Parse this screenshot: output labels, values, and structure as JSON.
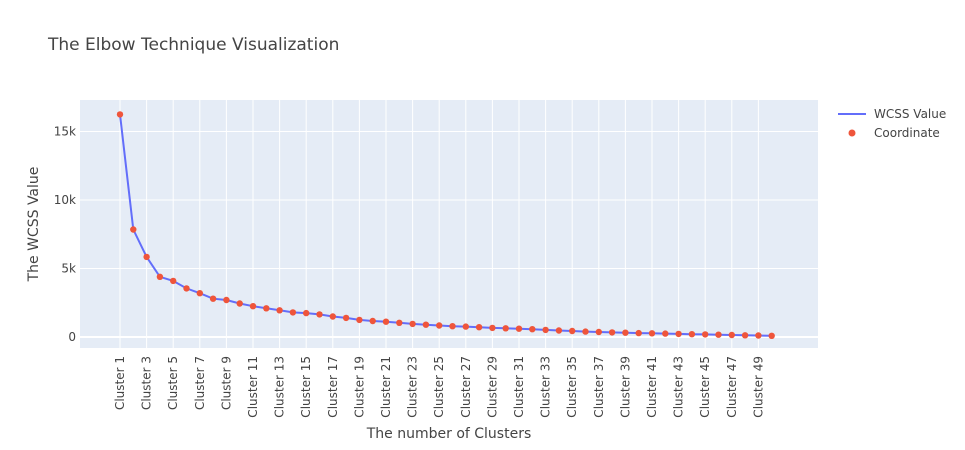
{
  "chart_data": {
    "type": "line",
    "title": "The Elbow Technique Visualization",
    "xlabel": "The number of Clusters",
    "ylabel": "The WCSS Value",
    "categories": [
      "Cluster 1",
      "Cluster 2",
      "Cluster 3",
      "Cluster 4",
      "Cluster 5",
      "Cluster 6",
      "Cluster 7",
      "Cluster 8",
      "Cluster 9",
      "Cluster 10",
      "Cluster 11",
      "Cluster 12",
      "Cluster 13",
      "Cluster 14",
      "Cluster 15",
      "Cluster 16",
      "Cluster 17",
      "Cluster 18",
      "Cluster 19",
      "Cluster 20",
      "Cluster 21",
      "Cluster 22",
      "Cluster 23",
      "Cluster 24",
      "Cluster 25",
      "Cluster 26",
      "Cluster 27",
      "Cluster 28",
      "Cluster 29",
      "Cluster 30",
      "Cluster 31",
      "Cluster 32",
      "Cluster 33",
      "Cluster 34",
      "Cluster 35",
      "Cluster 36",
      "Cluster 37",
      "Cluster 38",
      "Cluster 39",
      "Cluster 40",
      "Cluster 41",
      "Cluster 42",
      "Cluster 43",
      "Cluster 44",
      "Cluster 45",
      "Cluster 46",
      "Cluster 47",
      "Cluster 48",
      "Cluster 49",
      "Cluster 50"
    ],
    "x_tick_labels": [
      "Cluster 1",
      "Cluster 3",
      "Cluster 5",
      "Cluster 7",
      "Cluster 9",
      "Cluster 11",
      "Cluster 13",
      "Cluster 15",
      "Cluster 17",
      "Cluster 19",
      "Cluster 21",
      "Cluster 23",
      "Cluster 25",
      "Cluster 27",
      "Cluster 29",
      "Cluster 31",
      "Cluster 33",
      "Cluster 35",
      "Cluster 37",
      "Cluster 39",
      "Cluster 41",
      "Cluster 43",
      "Cluster 45",
      "Cluster 47",
      "Cluster 49"
    ],
    "y_ticks": [
      0,
      5000,
      10000,
      15000
    ],
    "y_tick_labels": [
      "0",
      "5k",
      "10k",
      "15k"
    ],
    "ylim": [
      -800,
      17300
    ],
    "grid": true,
    "legend_position": "top-right",
    "series": [
      {
        "name": "WCSS Value",
        "mode": "line",
        "color": "#636efa",
        "values": [
          16250,
          7850,
          5850,
          4400,
          4100,
          3550,
          3200,
          2800,
          2700,
          2450,
          2250,
          2100,
          1950,
          1800,
          1750,
          1650,
          1500,
          1400,
          1250,
          1170,
          1120,
          1040,
          960,
          900,
          840,
          790,
          760,
          720,
          670,
          640,
          610,
          570,
          520,
          480,
          440,
          400,
          370,
          340,
          320,
          290,
          270,
          250,
          230,
          210,
          190,
          170,
          150,
          130,
          110,
          90
        ]
      },
      {
        "name": "Coordinate",
        "mode": "markers",
        "color": "#ef553b",
        "values": [
          16250,
          7850,
          5850,
          4400,
          4100,
          3550,
          3200,
          2800,
          2700,
          2450,
          2250,
          2100,
          1950,
          1800,
          1750,
          1650,
          1500,
          1400,
          1250,
          1170,
          1120,
          1040,
          960,
          900,
          840,
          790,
          760,
          720,
          670,
          640,
          610,
          570,
          520,
          480,
          440,
          400,
          370,
          340,
          320,
          290,
          270,
          250,
          230,
          210,
          190,
          170,
          150,
          130,
          110,
          90
        ]
      }
    ]
  }
}
